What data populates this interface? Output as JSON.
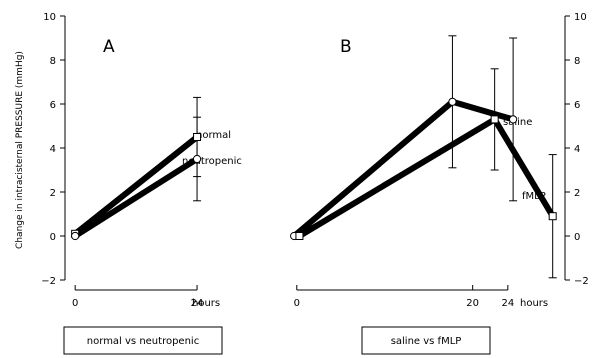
{
  "chart_data": {
    "ylabel": "Change in intracisternal PRESSURE (mmHg)",
    "ylim": [
      -2,
      10
    ],
    "yticks": [
      -2,
      0,
      2,
      4,
      6,
      8,
      10
    ],
    "panels": [
      {
        "type": "line",
        "label": "A",
        "xlim": [
          -2,
          36
        ],
        "xticks": [
          0,
          24
        ],
        "xunit": "hours",
        "caption": "normal vs neutropenic",
        "series": [
          {
            "name": "normal",
            "marker": "square",
            "x": [
              0,
              24
            ],
            "y": [
              0.1,
              4.5
            ],
            "err": [
              0,
              1.8
            ]
          },
          {
            "name": "neutropenic",
            "marker": "circle",
            "x": [
              0,
              24
            ],
            "y": [
              0.0,
              3.5
            ],
            "err": [
              0,
              1.9
            ]
          }
        ]
      },
      {
        "type": "line",
        "label": "B",
        "xlim": [
          -1,
          30.5
        ],
        "xticks": [
          0,
          20,
          24
        ],
        "xunit": "hours",
        "caption": "saline vs fMLP",
        "series": [
          {
            "name": "saline",
            "marker": "circle",
            "x": [
              -0.3,
              17.7,
              24.6
            ],
            "y": [
              0.0,
              6.1,
              5.3
            ],
            "err": [
              0,
              3.0,
              3.7
            ]
          },
          {
            "name": "fMLP",
            "marker": "square",
            "x": [
              0.3,
              22.5,
              29.1
            ],
            "y": [
              0.0,
              5.3,
              0.9
            ],
            "err": [
              0,
              2.3,
              2.8
            ]
          }
        ]
      }
    ]
  }
}
